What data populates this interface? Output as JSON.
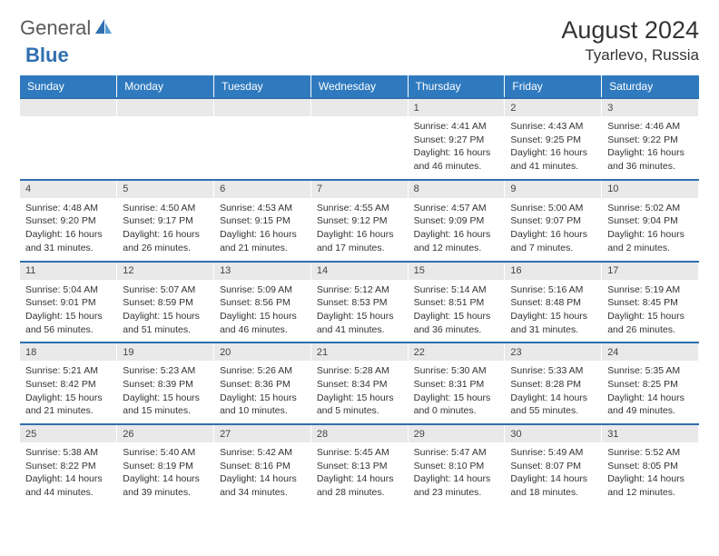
{
  "logo": {
    "text1": "General",
    "text2": "Blue"
  },
  "title": {
    "month": "August 2024",
    "location": "Tyarlevo, Russia"
  },
  "colors": {
    "headerBg": "#2f7abf",
    "numRowBg": "#e9e9e9",
    "rowDivider": "#2f6fb0",
    "sail": "#2f6fb0"
  },
  "dayNames": [
    "Sunday",
    "Monday",
    "Tuesday",
    "Wednesday",
    "Thursday",
    "Friday",
    "Saturday"
  ],
  "weeks": [
    [
      null,
      null,
      null,
      null,
      {
        "n": "1",
        "sr": "4:41 AM",
        "ss": "9:27 PM",
        "dl": "16 hours and 46 minutes."
      },
      {
        "n": "2",
        "sr": "4:43 AM",
        "ss": "9:25 PM",
        "dl": "16 hours and 41 minutes."
      },
      {
        "n": "3",
        "sr": "4:46 AM",
        "ss": "9:22 PM",
        "dl": "16 hours and 36 minutes."
      }
    ],
    [
      {
        "n": "4",
        "sr": "4:48 AM",
        "ss": "9:20 PM",
        "dl": "16 hours and 31 minutes."
      },
      {
        "n": "5",
        "sr": "4:50 AM",
        "ss": "9:17 PM",
        "dl": "16 hours and 26 minutes."
      },
      {
        "n": "6",
        "sr": "4:53 AM",
        "ss": "9:15 PM",
        "dl": "16 hours and 21 minutes."
      },
      {
        "n": "7",
        "sr": "4:55 AM",
        "ss": "9:12 PM",
        "dl": "16 hours and 17 minutes."
      },
      {
        "n": "8",
        "sr": "4:57 AM",
        "ss": "9:09 PM",
        "dl": "16 hours and 12 minutes."
      },
      {
        "n": "9",
        "sr": "5:00 AM",
        "ss": "9:07 PM",
        "dl": "16 hours and 7 minutes."
      },
      {
        "n": "10",
        "sr": "5:02 AM",
        "ss": "9:04 PM",
        "dl": "16 hours and 2 minutes."
      }
    ],
    [
      {
        "n": "11",
        "sr": "5:04 AM",
        "ss": "9:01 PM",
        "dl": "15 hours and 56 minutes."
      },
      {
        "n": "12",
        "sr": "5:07 AM",
        "ss": "8:59 PM",
        "dl": "15 hours and 51 minutes."
      },
      {
        "n": "13",
        "sr": "5:09 AM",
        "ss": "8:56 PM",
        "dl": "15 hours and 46 minutes."
      },
      {
        "n": "14",
        "sr": "5:12 AM",
        "ss": "8:53 PM",
        "dl": "15 hours and 41 minutes."
      },
      {
        "n": "15",
        "sr": "5:14 AM",
        "ss": "8:51 PM",
        "dl": "15 hours and 36 minutes."
      },
      {
        "n": "16",
        "sr": "5:16 AM",
        "ss": "8:48 PM",
        "dl": "15 hours and 31 minutes."
      },
      {
        "n": "17",
        "sr": "5:19 AM",
        "ss": "8:45 PM",
        "dl": "15 hours and 26 minutes."
      }
    ],
    [
      {
        "n": "18",
        "sr": "5:21 AM",
        "ss": "8:42 PM",
        "dl": "15 hours and 21 minutes."
      },
      {
        "n": "19",
        "sr": "5:23 AM",
        "ss": "8:39 PM",
        "dl": "15 hours and 15 minutes."
      },
      {
        "n": "20",
        "sr": "5:26 AM",
        "ss": "8:36 PM",
        "dl": "15 hours and 10 minutes."
      },
      {
        "n": "21",
        "sr": "5:28 AM",
        "ss": "8:34 PM",
        "dl": "15 hours and 5 minutes."
      },
      {
        "n": "22",
        "sr": "5:30 AM",
        "ss": "8:31 PM",
        "dl": "15 hours and 0 minutes."
      },
      {
        "n": "23",
        "sr": "5:33 AM",
        "ss": "8:28 PM",
        "dl": "14 hours and 55 minutes."
      },
      {
        "n": "24",
        "sr": "5:35 AM",
        "ss": "8:25 PM",
        "dl": "14 hours and 49 minutes."
      }
    ],
    [
      {
        "n": "25",
        "sr": "5:38 AM",
        "ss": "8:22 PM",
        "dl": "14 hours and 44 minutes."
      },
      {
        "n": "26",
        "sr": "5:40 AM",
        "ss": "8:19 PM",
        "dl": "14 hours and 39 minutes."
      },
      {
        "n": "27",
        "sr": "5:42 AM",
        "ss": "8:16 PM",
        "dl": "14 hours and 34 minutes."
      },
      {
        "n": "28",
        "sr": "5:45 AM",
        "ss": "8:13 PM",
        "dl": "14 hours and 28 minutes."
      },
      {
        "n": "29",
        "sr": "5:47 AM",
        "ss": "8:10 PM",
        "dl": "14 hours and 23 minutes."
      },
      {
        "n": "30",
        "sr": "5:49 AM",
        "ss": "8:07 PM",
        "dl": "14 hours and 18 minutes."
      },
      {
        "n": "31",
        "sr": "5:52 AM",
        "ss": "8:05 PM",
        "dl": "14 hours and 12 minutes."
      }
    ]
  ]
}
